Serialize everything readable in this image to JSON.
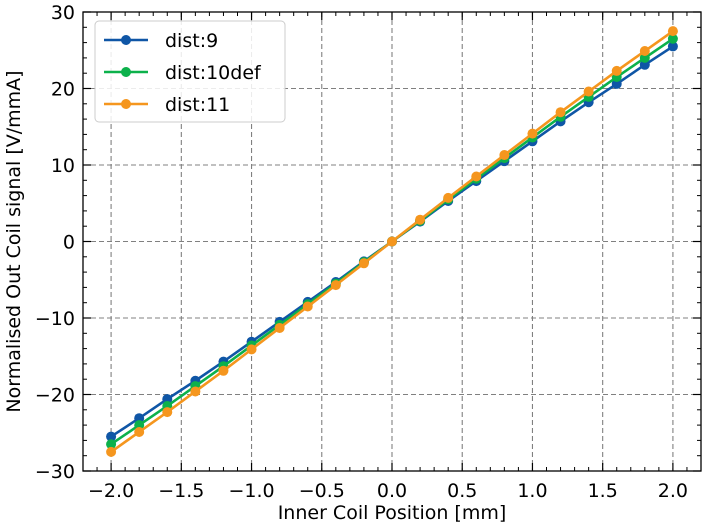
{
  "chart_data": {
    "type": "line",
    "title": "",
    "xlabel": "Inner Coil Position [mm]",
    "ylabel": "Normalised Out Coil signal [V/mmA]",
    "xlim": [
      -2.2,
      2.2
    ],
    "ylim": [
      -30,
      30
    ],
    "xticks": [
      -2.0,
      -1.5,
      -1.0,
      -0.5,
      0.0,
      0.5,
      1.0,
      1.5,
      2.0
    ],
    "xtick_labels": [
      "−2.0",
      "−1.5",
      "−1.0",
      "−0.5",
      "0.0",
      "0.5",
      "1.0",
      "1.5",
      "2.0"
    ],
    "yticks": [
      -30,
      -20,
      -10,
      0,
      10,
      20,
      30
    ],
    "ytick_labels": [
      "−30",
      "−20",
      "−10",
      "0",
      "10",
      "20",
      "30"
    ],
    "grid": true,
    "legend_position": "top-left",
    "x": [
      -2.0,
      -1.8,
      -1.6,
      -1.4,
      -1.2,
      -1.0,
      -0.8,
      -0.6,
      -0.4,
      -0.2,
      0.0,
      0.2,
      0.4,
      0.6,
      0.8,
      1.0,
      1.2,
      1.4,
      1.6,
      1.8,
      2.0
    ],
    "series": [
      {
        "name": "dist:9",
        "color": "#0f56a6",
        "values": [
          -25.5,
          -23.1,
          -20.6,
          -18.2,
          -15.7,
          -13.1,
          -10.5,
          -7.9,
          -5.3,
          -2.6,
          0.0,
          2.6,
          5.3,
          7.9,
          10.5,
          13.1,
          15.7,
          18.2,
          20.6,
          23.1,
          25.5
        ]
      },
      {
        "name": "dist:10def",
        "color": "#0cb14b",
        "values": [
          -26.5,
          -24.0,
          -21.5,
          -18.9,
          -16.3,
          -13.6,
          -10.9,
          -8.2,
          -5.5,
          -2.7,
          0.0,
          2.7,
          5.5,
          8.2,
          10.9,
          13.6,
          16.3,
          18.9,
          21.5,
          24.0,
          26.5
        ]
      },
      {
        "name": "dist:11",
        "color": "#f5961e",
        "values": [
          -27.5,
          -24.9,
          -22.3,
          -19.6,
          -16.9,
          -14.1,
          -11.3,
          -8.5,
          -5.7,
          -2.85,
          0.0,
          2.85,
          5.7,
          8.5,
          11.3,
          14.1,
          16.9,
          19.6,
          22.3,
          24.9,
          27.5
        ]
      }
    ]
  }
}
